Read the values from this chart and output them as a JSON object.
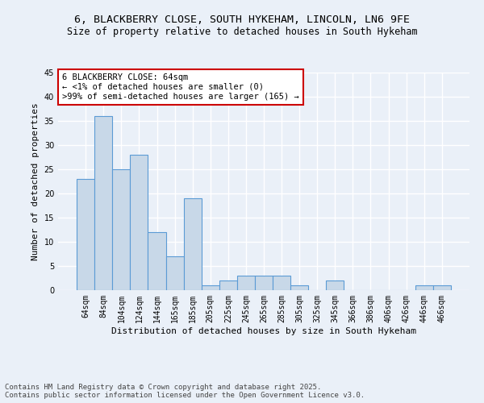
{
  "title_line1": "6, BLACKBERRY CLOSE, SOUTH HYKEHAM, LINCOLN, LN6 9FE",
  "title_line2": "Size of property relative to detached houses in South Hykeham",
  "xlabel": "Distribution of detached houses by size in South Hykeham",
  "ylabel": "Number of detached properties",
  "categories": [
    "64sqm",
    "84sqm",
    "104sqm",
    "124sqm",
    "144sqm",
    "165sqm",
    "185sqm",
    "205sqm",
    "225sqm",
    "245sqm",
    "265sqm",
    "285sqm",
    "305sqm",
    "325sqm",
    "345sqm",
    "366sqm",
    "386sqm",
    "406sqm",
    "426sqm",
    "446sqm",
    "466sqm"
  ],
  "values": [
    23,
    36,
    25,
    28,
    12,
    7,
    19,
    1,
    2,
    3,
    3,
    3,
    1,
    0,
    2,
    0,
    0,
    0,
    0,
    1,
    1
  ],
  "bar_color": "#c8d8e8",
  "bar_edge_color": "#5b9bd5",
  "annotation_text": "6 BLACKBERRY CLOSE: 64sqm\n← <1% of detached houses are smaller (0)\n>99% of semi-detached houses are larger (165) →",
  "annotation_box_color": "#ffffff",
  "annotation_box_edge_color": "#cc0000",
  "ylim": [
    0,
    45
  ],
  "yticks": [
    0,
    5,
    10,
    15,
    20,
    25,
    30,
    35,
    40,
    45
  ],
  "bg_color": "#eaf0f8",
  "plot_bg_color": "#eaf0f8",
  "grid_color": "#ffffff",
  "footer_line1": "Contains HM Land Registry data © Crown copyright and database right 2025.",
  "footer_line2": "Contains public sector information licensed under the Open Government Licence v3.0.",
  "title_fontsize": 9.5,
  "subtitle_fontsize": 8.5,
  "xlabel_fontsize": 8,
  "ylabel_fontsize": 8,
  "tick_fontsize": 7,
  "footer_fontsize": 6.5,
  "annotation_fontsize": 7.5
}
